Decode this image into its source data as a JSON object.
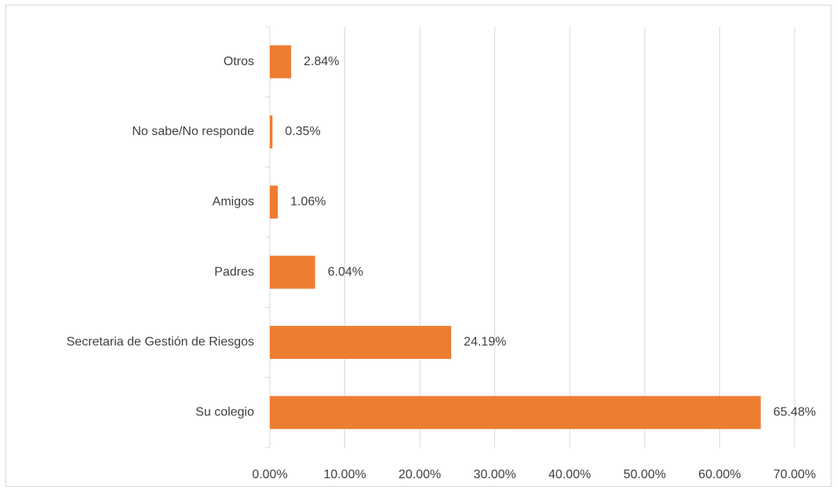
{
  "chart_data": {
    "type": "bar",
    "orientation": "horizontal",
    "categories": [
      "Otros",
      "No sabe/No responde",
      "Amigos",
      "Padres",
      "Secretaria de Gestión de Riesgos",
      "Su colegio"
    ],
    "values": [
      2.84,
      0.35,
      1.06,
      6.04,
      24.19,
      65.48
    ],
    "value_labels": [
      "2.84%",
      "0.35%",
      "1.06%",
      "6.04%",
      "24.19%",
      "65.48%"
    ],
    "color": "#ed7d31",
    "xlim": [
      0,
      70
    ],
    "xticks": [
      {
        "value": 0,
        "label": "0.00%"
      },
      {
        "value": 10,
        "label": "10.00%"
      },
      {
        "value": 20,
        "label": "20.00%"
      },
      {
        "value": 30,
        "label": "30.00%"
      },
      {
        "value": 40,
        "label": "40.00%"
      },
      {
        "value": 50,
        "label": "50.00%"
      },
      {
        "value": 60,
        "label": "60.00%"
      },
      {
        "value": 70,
        "label": "70.00%"
      }
    ],
    "grid": true
  }
}
